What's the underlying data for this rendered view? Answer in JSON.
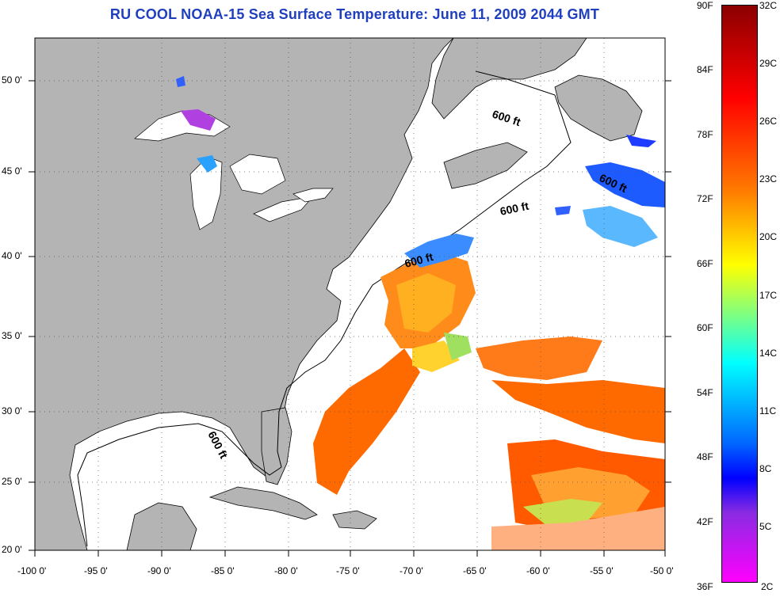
{
  "title": "RU COOL  NOAA-15  Sea Surface Temperature:  June 11, 2009 2044 GMT",
  "lat_labels": [
    "50 0'",
    "45 0'",
    "40 0'",
    "35 0'",
    "30 0'",
    "25 0'",
    "20 0'"
  ],
  "lon_labels": [
    "-100 0'",
    "-95 0'",
    "-90 0'",
    "-85 0'",
    "-80 0'",
    "-75 0'",
    "-70 0'",
    "-65 0'",
    "-60 0'",
    "-55 0'",
    "-50 0'"
  ],
  "contour_labels": [
    "600 ft",
    "600 ft",
    "600 ft",
    "600 ft",
    "600 ft"
  ],
  "colorbar": {
    "fahrenheit": [
      "90F",
      "84F",
      "78F",
      "72F",
      "66F",
      "60F",
      "54F",
      "48F",
      "42F",
      "36F"
    ],
    "celsius": [
      "32C",
      "29C",
      "26C",
      "23C",
      "20C",
      "17C",
      "14C",
      "11C",
      "8C",
      "5C",
      "2C"
    ]
  },
  "colors": {
    "land": "#b4b4b4",
    "ocean": "#ffffff",
    "title": "#1f3fbf"
  }
}
